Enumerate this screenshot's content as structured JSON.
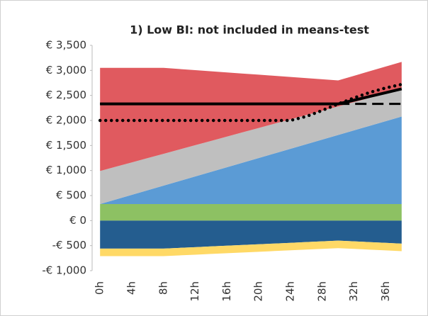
{
  "chart_data": {
    "type": "stacked_area_line",
    "title": "1) Low BI: not included in means-test",
    "categories": [
      "0h",
      null,
      "4h",
      null,
      "8h",
      null,
      "12h",
      null,
      "16h",
      null,
      "20h",
      null,
      "24h",
      null,
      "28h",
      null,
      "32h",
      null,
      "36h",
      null
    ],
    "ylim": [
      -1000,
      3500
    ],
    "yticks": [
      {
        "value": -1000,
        "label": "-€ 1,000"
      },
      {
        "value": -500,
        "label": "-€ 500"
      },
      {
        "value": 0,
        "label": "€ 0"
      },
      {
        "value": 500,
        "label": "€ 500"
      },
      {
        "value": 1000,
        "label": "€ 1,000"
      },
      {
        "value": 1500,
        "label": "€ 1,500"
      },
      {
        "value": 2000,
        "label": "€ 2,000"
      },
      {
        "value": 2500,
        "label": "€ 2,500"
      },
      {
        "value": 3000,
        "label": "€ 3,000"
      },
      {
        "value": 3500,
        "label": "€ 3,500"
      }
    ],
    "grid": false,
    "series": [
      {
        "kind": "area",
        "color": "#8dc163",
        "values": [
          330,
          330,
          330,
          330,
          330,
          330,
          330,
          330,
          330,
          330,
          330,
          330,
          330,
          330,
          330,
          330,
          330,
          330,
          330,
          330
        ]
      },
      {
        "kind": "area",
        "color": "#5b9bd5",
        "values": [
          0,
          92,
          184,
          276,
          368,
          460,
          552,
          644,
          736,
          828,
          920,
          1012,
          1104,
          1196,
          1288,
          1380,
          1472,
          1564,
          1656,
          1748
        ]
      },
      {
        "kind": "area",
        "color": "#bfbfbf",
        "values": [
          660,
          654,
          648,
          642,
          636,
          630,
          624,
          618,
          612,
          606,
          600,
          594,
          588,
          582,
          576,
          570,
          564,
          558,
          552,
          546
        ]
      },
      {
        "kind": "area",
        "color": "#e05a5f",
        "values": [
          2060,
          1974,
          1888,
          1802,
          1716,
          1607,
          1499,
          1390,
          1281,
          1172,
          1064,
          955,
          846,
          737,
          629,
          520,
          526,
          533,
          539,
          546
        ]
      },
      {
        "kind": "area",
        "color": "#245d8f",
        "values": [
          -560,
          -560,
          -560,
          -560,
          -560,
          -545,
          -531,
          -516,
          -502,
          -487,
          -473,
          -458,
          -444,
          -429,
          -415,
          -400,
          -415,
          -430,
          -445,
          -460
        ]
      },
      {
        "kind": "area",
        "color": "#ffd966",
        "values": [
          -150,
          -150,
          -150,
          -150,
          -150,
          -150,
          -150,
          -150,
          -150,
          -150,
          -150,
          -150,
          -150,
          -150,
          -150,
          -150,
          -150,
          -150,
          -150,
          -150
        ]
      },
      {
        "kind": "line",
        "dash": "dashed",
        "color": "#000000",
        "values": [
          2330,
          2330,
          2330,
          2330,
          2330,
          2330,
          2330,
          2330,
          2330,
          2330,
          2330,
          2330,
          2330,
          2330,
          2330,
          2330,
          2330,
          2330,
          2330,
          2330
        ]
      },
      {
        "kind": "line",
        "dash": "solid",
        "color": "#000000",
        "values": [
          2330,
          2330,
          2330,
          2330,
          2330,
          2330,
          2330,
          2330,
          2330,
          2330,
          2330,
          2330,
          2330,
          2330,
          2330,
          2330,
          2405,
          2480,
          2555,
          2630
        ]
      },
      {
        "kind": "line",
        "dash": "dotted",
        "color": "#000000",
        "values": [
          2000,
          2000,
          2000,
          2000,
          2000,
          2000,
          2000,
          2000,
          2000,
          2000,
          2000,
          2000,
          2000,
          2080,
          2200,
          2330,
          2450,
          2560,
          2650,
          2720
        ]
      }
    ]
  }
}
